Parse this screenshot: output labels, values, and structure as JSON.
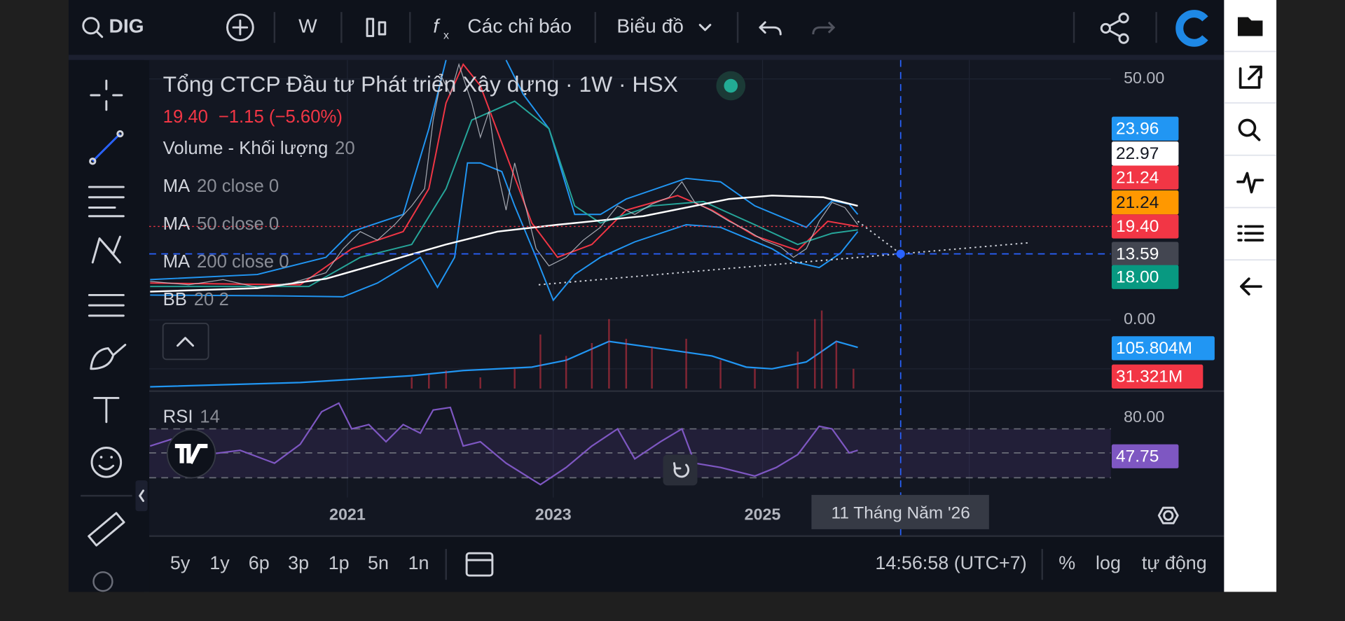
{
  "toolbar": {
    "symbol": "DIG",
    "interval": "W",
    "indicators": "Các chỉ báo",
    "chart_type": "Biểu đồ"
  },
  "chart": {
    "title": "Tổng CTCP Đầu tư Phát triển Xây dựng · 1W · HSX",
    "price": "19.40",
    "change": "−1.15 (−5.60%)",
    "legend": [
      {
        "name": "Volume - Khối lượng",
        "params": "20"
      },
      {
        "name": "MA",
        "params": "20 close 0"
      },
      {
        "name": "MA",
        "params": "50 close 0"
      },
      {
        "name": "MA",
        "params": "200 close 0"
      },
      {
        "name": "BB",
        "params": "20 2"
      }
    ],
    "rsi": {
      "name": "RSI",
      "params": "14"
    },
    "price_axis": [
      "50.00",
      "0.00",
      "80.00"
    ],
    "price_labels": [
      {
        "text": "23.96",
        "color": "#2196f3"
      },
      {
        "text": "22.97",
        "color": "#ffffff"
      },
      {
        "text": "21.24",
        "color": "#f23645"
      },
      {
        "text": "21.24",
        "color": "#ff9800"
      },
      {
        "text": "19.40",
        "color": "#f23645"
      },
      {
        "text": "13.59",
        "color": "#434651"
      },
      {
        "text": "18.00",
        "color": "#089981"
      }
    ],
    "volume_labels": [
      {
        "text": "105.804M",
        "color": "#2196f3"
      },
      {
        "text": "31.321M",
        "color": "#f23645"
      }
    ],
    "rsi_label": {
      "text": "47.75",
      "color": "#7e57c2"
    },
    "time_axis": [
      "2021",
      "2023",
      "2025"
    ],
    "crosshair_time": "11 Tháng Năm '26"
  },
  "bottom": {
    "ranges": [
      "5y",
      "1y",
      "6p",
      "3p",
      "1p",
      "5n",
      "1n"
    ],
    "clock": "14:56:58 (UTC+7)",
    "options": [
      "%",
      "log",
      "tự động"
    ]
  }
}
